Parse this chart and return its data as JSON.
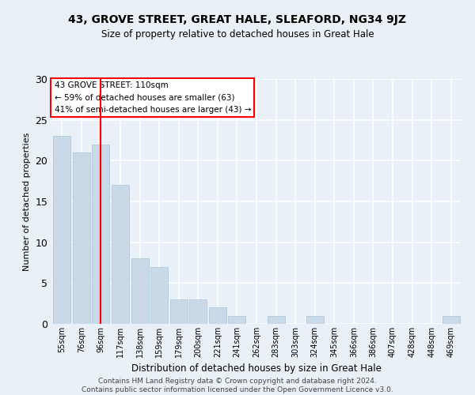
{
  "title": "43, GROVE STREET, GREAT HALE, SLEAFORD, NG34 9JZ",
  "subtitle": "Size of property relative to detached houses in Great Hale",
  "xlabel": "Distribution of detached houses by size in Great Hale",
  "ylabel": "Number of detached properties",
  "categories": [
    "55sqm",
    "76sqm",
    "96sqm",
    "117sqm",
    "138sqm",
    "159sqm",
    "179sqm",
    "200sqm",
    "221sqm",
    "241sqm",
    "262sqm",
    "283sqm",
    "303sqm",
    "324sqm",
    "345sqm",
    "366sqm",
    "386sqm",
    "407sqm",
    "428sqm",
    "448sqm",
    "469sqm"
  ],
  "values": [
    23,
    21,
    22,
    17,
    8,
    7,
    3,
    3,
    2,
    1,
    0,
    1,
    0,
    1,
    0,
    0,
    0,
    0,
    0,
    0,
    1
  ],
  "bar_color": "#c9d9e8",
  "bar_edge_color": "#a8c4d8",
  "vline_x": 2,
  "vline_color": "red",
  "annotation_text": "43 GROVE STREET: 110sqm\n← 59% of detached houses are smaller (63)\n41% of semi-detached houses are larger (43) →",
  "annotation_box_color": "white",
  "annotation_box_edge_color": "red",
  "ylim": [
    0,
    30
  ],
  "yticks": [
    0,
    5,
    10,
    15,
    20,
    25,
    30
  ],
  "bg_color": "#eaf0f8",
  "grid_color": "white",
  "footer": "Contains HM Land Registry data © Crown copyright and database right 2024.\nContains public sector information licensed under the Open Government Licence v3.0."
}
